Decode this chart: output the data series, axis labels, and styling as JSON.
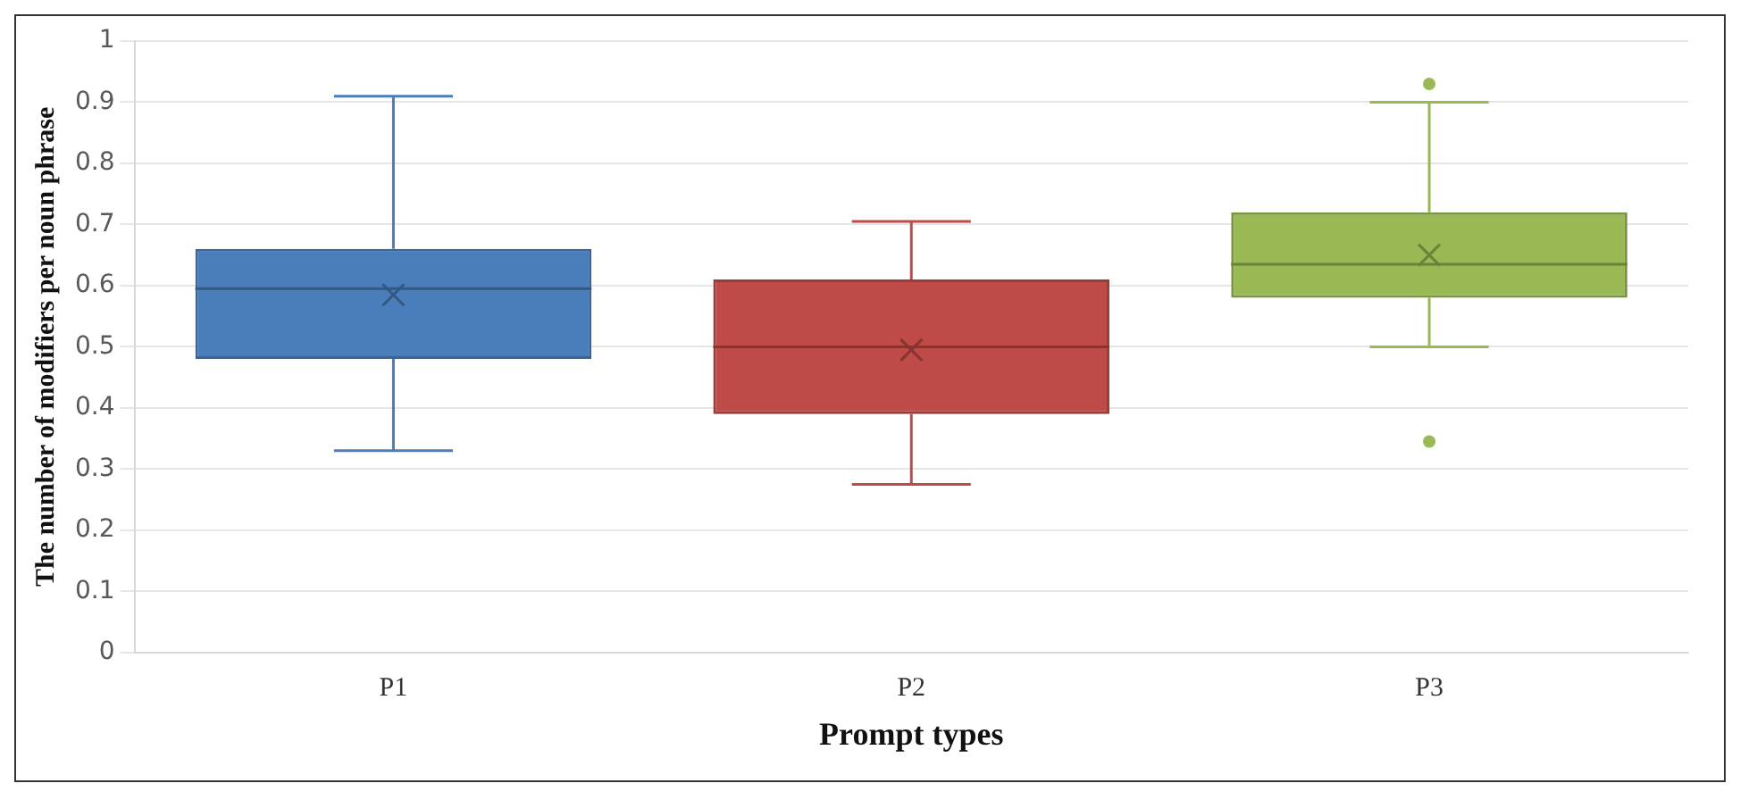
{
  "chart_data": {
    "type": "box",
    "xlabel": "Prompt types",
    "ylabel": "The number of modifiers per noun phrase",
    "categories": [
      "P1",
      "P2",
      "P3"
    ],
    "colors": [
      "#4a7ebb",
      "#be4b48",
      "#98b954"
    ],
    "boxes": [
      {
        "low": 0.33,
        "q1": 0.48,
        "median": 0.595,
        "q3": 0.66,
        "high": 0.91,
        "mean": 0.585
      },
      {
        "low": 0.275,
        "q1": 0.39,
        "median": 0.5,
        "q3": 0.61,
        "high": 0.705,
        "mean": 0.495
      },
      {
        "low": 0.5,
        "q1": 0.58,
        "median": 0.635,
        "q3": 0.72,
        "high": 0.9,
        "mean": 0.65,
        "outliers": [
          0.93,
          0.345
        ]
      }
    ],
    "ylim": [
      0,
      1
    ],
    "yticks": [
      0,
      0.1,
      0.2,
      0.3,
      0.4,
      0.5,
      0.6,
      0.7,
      0.8,
      0.9,
      1
    ],
    "grid": "y",
    "legend": false
  }
}
